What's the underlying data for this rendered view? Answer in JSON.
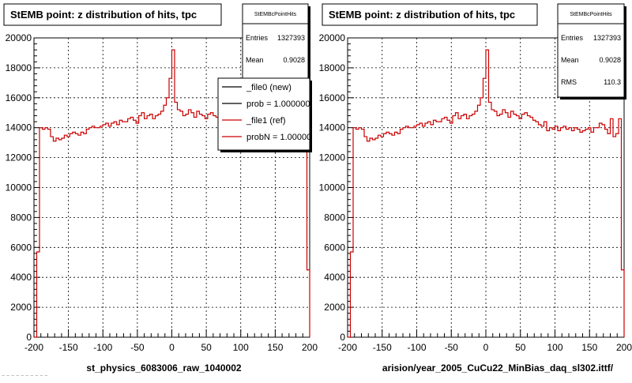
{
  "chart_data": [
    {
      "type": "bar",
      "histogram_style": "step",
      "title": "StEMB point: z distribution of hits, tpc",
      "xlabel": "st_physics_6083006_raw_1040002",
      "ylabel": "",
      "xlim": [
        -200,
        200
      ],
      "ylim": [
        0,
        20000
      ],
      "x_ticks": [
        -200,
        -150,
        -100,
        -50,
        0,
        50,
        100,
        150,
        200
      ],
      "y_ticks": [
        0,
        2000,
        4000,
        6000,
        8000,
        10000,
        12000,
        14000,
        16000,
        18000,
        20000
      ],
      "grid": true,
      "stats": {
        "name": "StEMBcPointHits",
        "entries_label": "Entries",
        "entries_value": "1327393",
        "mean_label": "Mean",
        "mean_value": "0.9028"
      },
      "legend": {
        "placement": "top-right",
        "entries": [
          {
            "label": "_file0 (new)",
            "color": "#000000"
          },
          {
            "label": "prob = 1.000000",
            "color": "#000000"
          },
          {
            "label": "_file1 (ref)",
            "color": "#cc0000"
          },
          {
            "label": "probN = 1.000000",
            "color": "#cc0000"
          }
        ]
      },
      "series": [
        {
          "color": "#cc0000",
          "bin_width": 4,
          "x_start": -200,
          "values": [
            0,
            5700,
            14000,
            13900,
            14000,
            13900,
            13400,
            13100,
            13300,
            13200,
            13300,
            13500,
            13400,
            13600,
            13700,
            13600,
            13500,
            13700,
            13600,
            13900,
            14000,
            14100,
            14000,
            14000,
            14100,
            14200,
            14300,
            14100,
            14300,
            14400,
            14200,
            14500,
            14400,
            14400,
            14600,
            14700,
            14500,
            14300,
            14800,
            15000,
            14600,
            14800,
            14900,
            14600,
            14800,
            14900,
            15100,
            15500,
            16000,
            17300,
            19200,
            15700,
            15200,
            15100,
            14800,
            14900,
            15200,
            15000,
            14700,
            15100,
            14900,
            14800,
            14600,
            14900,
            15000,
            14800,
            14700,
            14500,
            14400,
            14200,
            14100,
            14400,
            13800,
            14000,
            13900,
            14100,
            13800,
            14000,
            14100,
            13900,
            14000,
            13800,
            14000,
            13900,
            13700,
            13800,
            13900,
            14000,
            13700,
            14000,
            14000,
            14300,
            14200,
            13900,
            13600,
            13800,
            13700,
            13600,
            13900,
            4500
          ]
        }
      ]
    },
    {
      "type": "bar",
      "histogram_style": "step",
      "title": "StEMB point: z distribution of hits, tpc",
      "xlabel": "arision/year_2005_CuCu22_MinBias_daq_sl302.ittf/",
      "ylabel": "",
      "xlim": [
        -200,
        200
      ],
      "ylim": [
        0,
        20000
      ],
      "x_ticks": [
        -200,
        -150,
        -100,
        -50,
        0,
        50,
        100,
        150,
        200
      ],
      "y_ticks": [
        0,
        2000,
        4000,
        6000,
        8000,
        10000,
        12000,
        14000,
        16000,
        18000,
        20000
      ],
      "grid": true,
      "stats": {
        "name": "StEMBcPointHits",
        "entries_label": "Entries",
        "entries_value": "1327393",
        "mean_label": "Mean",
        "mean_value": "0.9028",
        "rms_label": "RMS",
        "rms_value": "110.3"
      },
      "series": [
        {
          "color": "#cc0000",
          "bin_width": 4,
          "x_start": -200,
          "values": [
            0,
            5700,
            14000,
            13900,
            14000,
            13900,
            13400,
            13100,
            13300,
            13200,
            13300,
            13500,
            13400,
            13600,
            13700,
            13600,
            13500,
            13700,
            13600,
            13900,
            14000,
            14100,
            14000,
            14000,
            14100,
            14200,
            14300,
            14100,
            14300,
            14400,
            14200,
            14500,
            14400,
            14400,
            14600,
            14700,
            14500,
            14300,
            14800,
            15000,
            14600,
            14800,
            14900,
            14600,
            14800,
            14900,
            15100,
            15500,
            16000,
            17300,
            19200,
            15700,
            15200,
            15100,
            14800,
            14900,
            15200,
            15000,
            14700,
            15100,
            14900,
            14800,
            14600,
            14900,
            15000,
            14800,
            14700,
            14500,
            14400,
            14200,
            14100,
            14400,
            13800,
            14000,
            13900,
            14100,
            13800,
            14000,
            14100,
            13900,
            14000,
            13800,
            14000,
            13900,
            13700,
            13800,
            13900,
            14000,
            13700,
            14000,
            14000,
            14300,
            14200,
            13900,
            13600,
            14600,
            13400,
            13600,
            14600,
            4500
          ]
        }
      ]
    }
  ],
  "footer_text": "~ ~ ~ ~ ~ ~ ~ ~ ~ ~"
}
